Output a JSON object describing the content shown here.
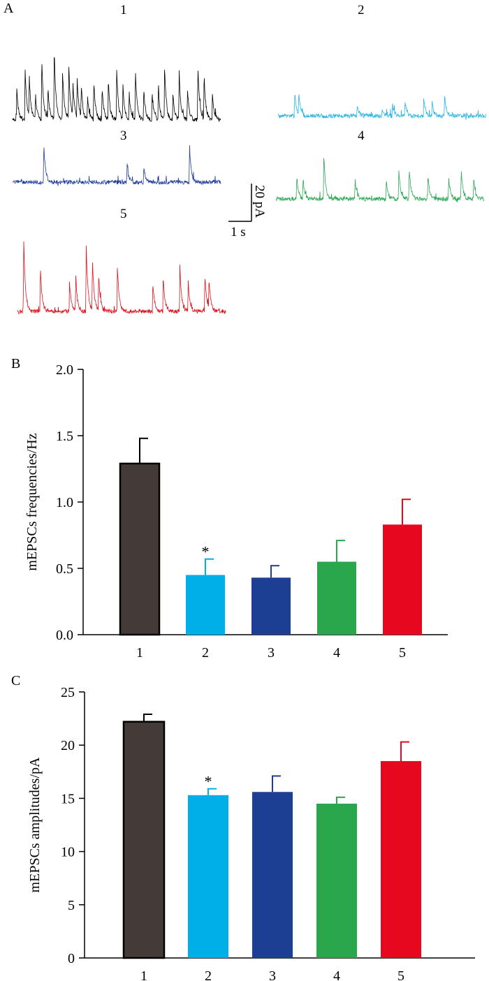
{
  "colors": {
    "group1": "#000000",
    "group2": "#29b6e6",
    "group3": "#1f3c9e",
    "group4": "#2ea856",
    "group5": "#e0141e",
    "bar1": "#443b38",
    "bar2": "#00aee8",
    "bar3": "#1c3f94",
    "bar4": "#2aa74d",
    "bar5": "#e5081e"
  },
  "panelA": {
    "label": "A",
    "scale_bar": {
      "time": "1 s",
      "current": "20 pA"
    },
    "traces": [
      {
        "label": "1",
        "color_key": "group1",
        "spikes": [
          [
            0.02,
            0.35
          ],
          [
            0.06,
            0.6
          ],
          [
            0.08,
            0.45
          ],
          [
            0.11,
            0.25
          ],
          [
            0.14,
            0.7
          ],
          [
            0.17,
            0.35
          ],
          [
            0.2,
            0.8
          ],
          [
            0.24,
            0.55
          ],
          [
            0.27,
            0.6
          ],
          [
            0.29,
            0.35
          ],
          [
            0.31,
            0.45
          ],
          [
            0.33,
            0.35
          ],
          [
            0.36,
            0.25
          ],
          [
            0.39,
            0.45
          ],
          [
            0.43,
            0.35
          ],
          [
            0.46,
            0.45
          ],
          [
            0.5,
            0.55
          ],
          [
            0.53,
            0.4
          ],
          [
            0.56,
            0.3
          ],
          [
            0.59,
            0.55
          ],
          [
            0.63,
            0.35
          ],
          [
            0.67,
            0.3
          ],
          [
            0.7,
            0.35
          ],
          [
            0.73,
            0.6
          ],
          [
            0.77,
            0.3
          ],
          [
            0.8,
            0.55
          ],
          [
            0.84,
            0.35
          ],
          [
            0.89,
            0.6
          ],
          [
            0.92,
            0.5
          ],
          [
            0.96,
            0.3
          ]
        ]
      },
      {
        "label": "2",
        "color_key": "group2",
        "spikes": [
          [
            0.08,
            0.6
          ],
          [
            0.1,
            0.5
          ],
          [
            0.38,
            0.3
          ],
          [
            0.5,
            0.2
          ],
          [
            0.55,
            0.3
          ],
          [
            0.61,
            0.4
          ],
          [
            0.7,
            0.5
          ],
          [
            0.74,
            0.35
          ],
          [
            0.8,
            0.55
          ]
        ]
      },
      {
        "label": "3",
        "color_key": "group3",
        "spikes": [
          [
            0.15,
            0.9
          ],
          [
            0.55,
            0.45
          ],
          [
            0.63,
            0.4
          ],
          [
            0.85,
            0.85
          ]
        ]
      },
      {
        "label": "4",
        "color_key": "group4",
        "spikes": [
          [
            0.1,
            0.4
          ],
          [
            0.13,
            0.35
          ],
          [
            0.23,
            0.75
          ],
          [
            0.38,
            0.35
          ],
          [
            0.53,
            0.3
          ],
          [
            0.59,
            0.5
          ],
          [
            0.64,
            0.55
          ],
          [
            0.73,
            0.4
          ],
          [
            0.83,
            0.35
          ],
          [
            0.89,
            0.5
          ],
          [
            0.95,
            0.35
          ]
        ]
      },
      {
        "label": "5",
        "color_key": "group5",
        "spikes": [
          [
            0.03,
            0.95
          ],
          [
            0.11,
            0.6
          ],
          [
            0.25,
            0.4
          ],
          [
            0.28,
            0.45
          ],
          [
            0.33,
            0.9
          ],
          [
            0.36,
            0.7
          ],
          [
            0.39,
            0.5
          ],
          [
            0.48,
            0.6
          ],
          [
            0.65,
            0.4
          ],
          [
            0.7,
            0.45
          ],
          [
            0.78,
            0.6
          ],
          [
            0.82,
            0.4
          ],
          [
            0.9,
            0.5
          ],
          [
            0.92,
            0.4
          ]
        ]
      }
    ]
  },
  "chart_data": [
    {
      "panel": "B",
      "type": "bar",
      "categories": [
        "1",
        "2",
        "3",
        "4",
        "5"
      ],
      "values": [
        1.29,
        0.45,
        0.43,
        0.55,
        0.83
      ],
      "errors": [
        0.19,
        0.12,
        0.09,
        0.16,
        0.19
      ],
      "significance": [
        "",
        "*",
        "",
        "",
        ""
      ],
      "ylabel": "mEPSCs frequencies/Hz",
      "ylim": [
        0,
        2.0
      ],
      "yticks": [
        0.0,
        0.5,
        1.0,
        1.5,
        2.0
      ],
      "ytick_labels": [
        "0.0",
        "0.5",
        "1.0",
        "1.5",
        "2.0"
      ],
      "bar_color_keys": [
        "bar1",
        "bar2",
        "bar3",
        "bar4",
        "bar5"
      ]
    },
    {
      "panel": "C",
      "type": "bar",
      "categories": [
        "1",
        "2",
        "3",
        "4",
        "5"
      ],
      "values": [
        22.2,
        15.3,
        15.6,
        14.5,
        18.5
      ],
      "errors": [
        0.7,
        0.6,
        1.5,
        0.6,
        1.8
      ],
      "significance": [
        "",
        "*",
        "",
        "",
        ""
      ],
      "ylabel": "mEPSCs amplitudes/pA",
      "ylim": [
        0,
        25
      ],
      "yticks": [
        0,
        5,
        10,
        15,
        20,
        25
      ],
      "ytick_labels": [
        "0",
        "5",
        "10",
        "15",
        "20",
        "25"
      ],
      "bar_color_keys": [
        "bar1",
        "bar2",
        "bar3",
        "bar4",
        "bar5"
      ]
    }
  ]
}
